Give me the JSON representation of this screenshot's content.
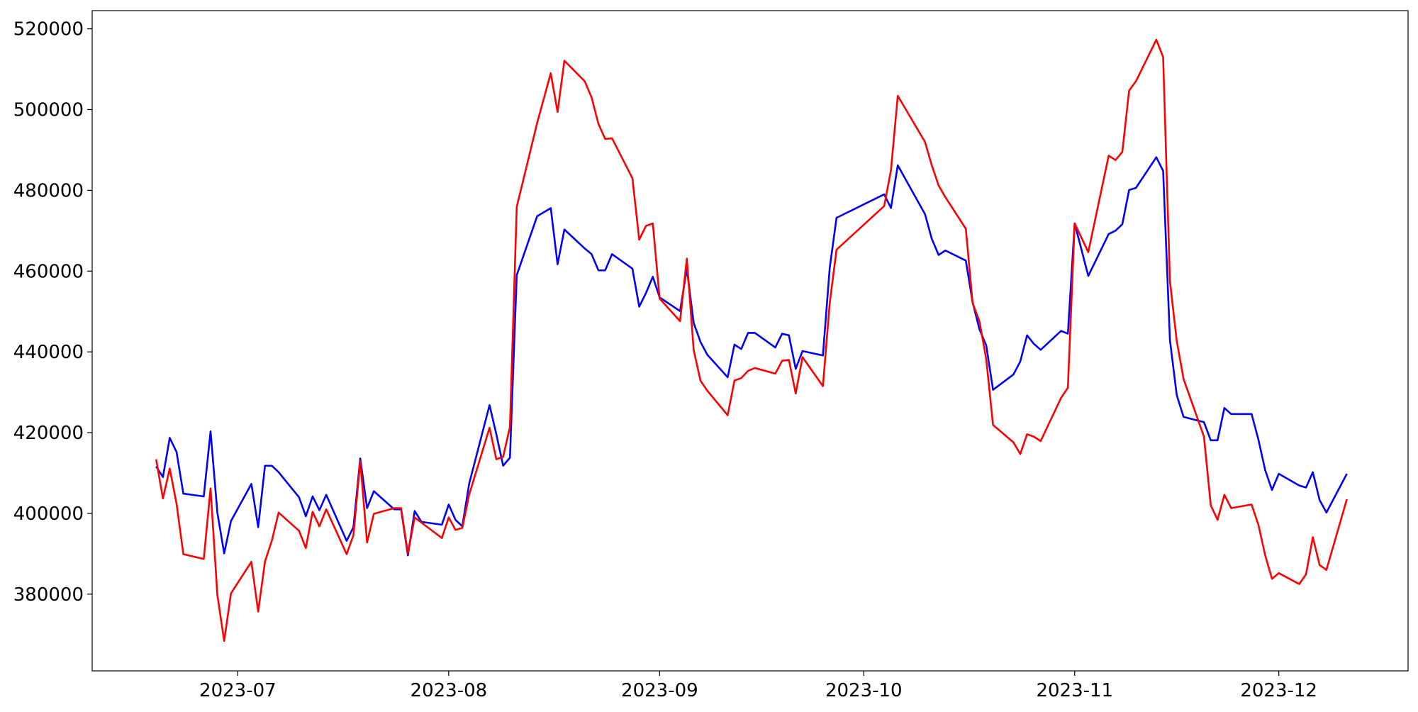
{
  "chart_data": {
    "type": "line",
    "x": [
      170,
      171,
      172,
      173,
      174,
      177,
      178,
      179,
      180,
      181,
      184,
      185,
      186,
      187,
      188,
      191,
      192,
      193,
      194,
      195,
      198,
      199,
      200,
      201,
      202,
      205,
      206,
      207,
      208,
      209,
      212,
      213,
      214,
      215,
      216,
      219,
      220,
      221,
      222,
      223,
      226,
      228,
      229,
      230,
      233,
      234,
      235,
      236,
      237,
      240,
      241,
      242,
      243,
      244,
      247,
      248,
      249,
      250,
      251,
      254,
      255,
      256,
      257,
      258,
      261,
      262,
      263,
      264,
      265,
      268,
      269,
      270,
      277,
      278,
      279,
      283,
      284,
      285,
      286,
      289,
      290,
      291,
      292,
      293,
      296,
      297,
      298,
      299,
      300,
      303,
      304,
      305,
      307,
      310,
      311,
      312,
      313,
      314,
      317,
      318,
      319,
      320,
      321,
      324,
      325,
      326,
      327,
      328,
      331,
      332,
      333,
      334,
      335,
      338,
      339,
      340,
      341,
      342,
      345
    ],
    "series": [
      {
        "color": "#0000ff",
        "values": [
          411600,
          409000,
          418700,
          415200,
          404900,
          404200,
          420300,
          400200,
          390100,
          398100,
          407300,
          396600,
          411800,
          411800,
          410200,
          404000,
          399300,
          404200,
          400800,
          404600,
          393200,
          396600,
          413600,
          401300,
          405500,
          401000,
          401000,
          389600,
          400600,
          397900,
          397200,
          402200,
          398400,
          396800,
          407300,
          426800,
          419600,
          411800,
          413800,
          459000,
          473600,
          475600,
          461700,
          470300,
          465600,
          464200,
          460200,
          460200,
          464200,
          460600,
          451200,
          454600,
          458600,
          453500,
          450100,
          460600,
          447200,
          442500,
          439300,
          433700,
          441800,
          440700,
          444700,
          444700,
          441100,
          444500,
          444100,
          435800,
          440200,
          439100,
          460800,
          473200,
          479000,
          475600,
          486200,
          474100,
          468000,
          464000,
          465100,
          462600,
          452300,
          445600,
          441600,
          430600,
          434400,
          437600,
          444100,
          442000,
          440500,
          445200,
          444500,
          471800,
          458800,
          469200,
          470000,
          471600,
          480100,
          480600,
          488200,
          484800,
          442900,
          429300,
          423900,
          422600,
          418100,
          418100,
          426100,
          424600,
          424600,
          418300,
          410700,
          405800,
          409800,
          406900,
          406400,
          410200,
          403300,
          400200,
          409800
        ]
      },
      {
        "color": "#ff0000",
        "values": [
          413400,
          403700,
          411100,
          402400,
          389900,
          388700,
          406200,
          379800,
          368400,
          380200,
          388000,
          375700,
          388100,
          393200,
          400200,
          395700,
          391400,
          400400,
          396800,
          401000,
          389900,
          394600,
          412900,
          392800,
          399900,
          401300,
          401300,
          390100,
          399000,
          397700,
          393900,
          399000,
          395900,
          396400,
          404600,
          421200,
          413400,
          414000,
          421400,
          475900,
          496700,
          509000,
          499400,
          512100,
          507000,
          503000,
          496500,
          492700,
          492900,
          483000,
          467800,
          471200,
          471800,
          453200,
          447600,
          463100,
          440500,
          432900,
          430400,
          424300,
          432900,
          433500,
          435300,
          436000,
          434600,
          437800,
          438000,
          429700,
          438700,
          431500,
          452100,
          465300,
          476100,
          485000,
          503400,
          492000,
          486200,
          481200,
          478300,
          470500,
          452100,
          447600,
          438200,
          421900,
          417600,
          414700,
          419600,
          419000,
          417900,
          428600,
          431100,
          471800,
          464700,
          488600,
          487500,
          489500,
          504700,
          507000,
          517300,
          513000,
          457500,
          442700,
          433300,
          419000,
          402000,
          398400,
          404600,
          401300,
          402200,
          397200,
          389600,
          383800,
          385200,
          382500,
          384900,
          394100,
          387200,
          386000,
          403500
        ]
      }
    ],
    "xlim": [
      160.6,
      354
    ],
    "xticks": [
      {
        "value": 182,
        "label": "2023-07"
      },
      {
        "value": 213,
        "label": "2023-08"
      },
      {
        "value": 244,
        "label": "2023-09"
      },
      {
        "value": 274,
        "label": "2023-10"
      },
      {
        "value": 305,
        "label": "2023-11"
      },
      {
        "value": 335,
        "label": "2023-12"
      }
    ],
    "ylim": [
      361000,
      524500
    ],
    "yticks": [
      380000,
      400000,
      420000,
      440000,
      460000,
      480000,
      500000,
      520000
    ],
    "grid": false
  }
}
